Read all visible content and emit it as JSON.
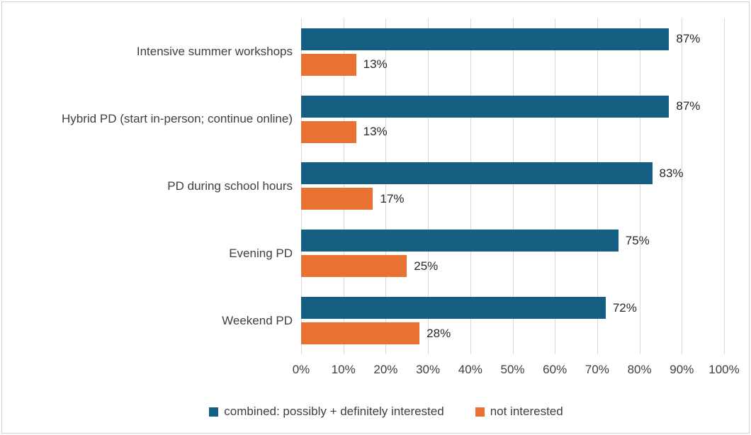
{
  "chart_data": {
    "type": "bar",
    "orientation": "horizontal",
    "title": "",
    "categories": [
      "Intensive summer workshops",
      "Hybrid PD (start in-person; continue online)",
      "PD during school hours",
      "Evening PD",
      "Weekend PD"
    ],
    "series": [
      {
        "name": "combined: possibly + definitely interested",
        "color": "#156082",
        "values": [
          87,
          87,
          83,
          75,
          72
        ]
      },
      {
        "name": "not interested",
        "color": "#E97132",
        "values": [
          13,
          13,
          17,
          25,
          28
        ]
      }
    ],
    "value_suffix": "%",
    "xlim": [
      0,
      100
    ],
    "x_ticks": [
      "0%",
      "10%",
      "20%",
      "30%",
      "40%",
      "50%",
      "60%",
      "70%",
      "80%",
      "90%",
      "100%"
    ],
    "grid": true,
    "gridline_color": "#D9D9D9",
    "legend_position": "bottom"
  }
}
